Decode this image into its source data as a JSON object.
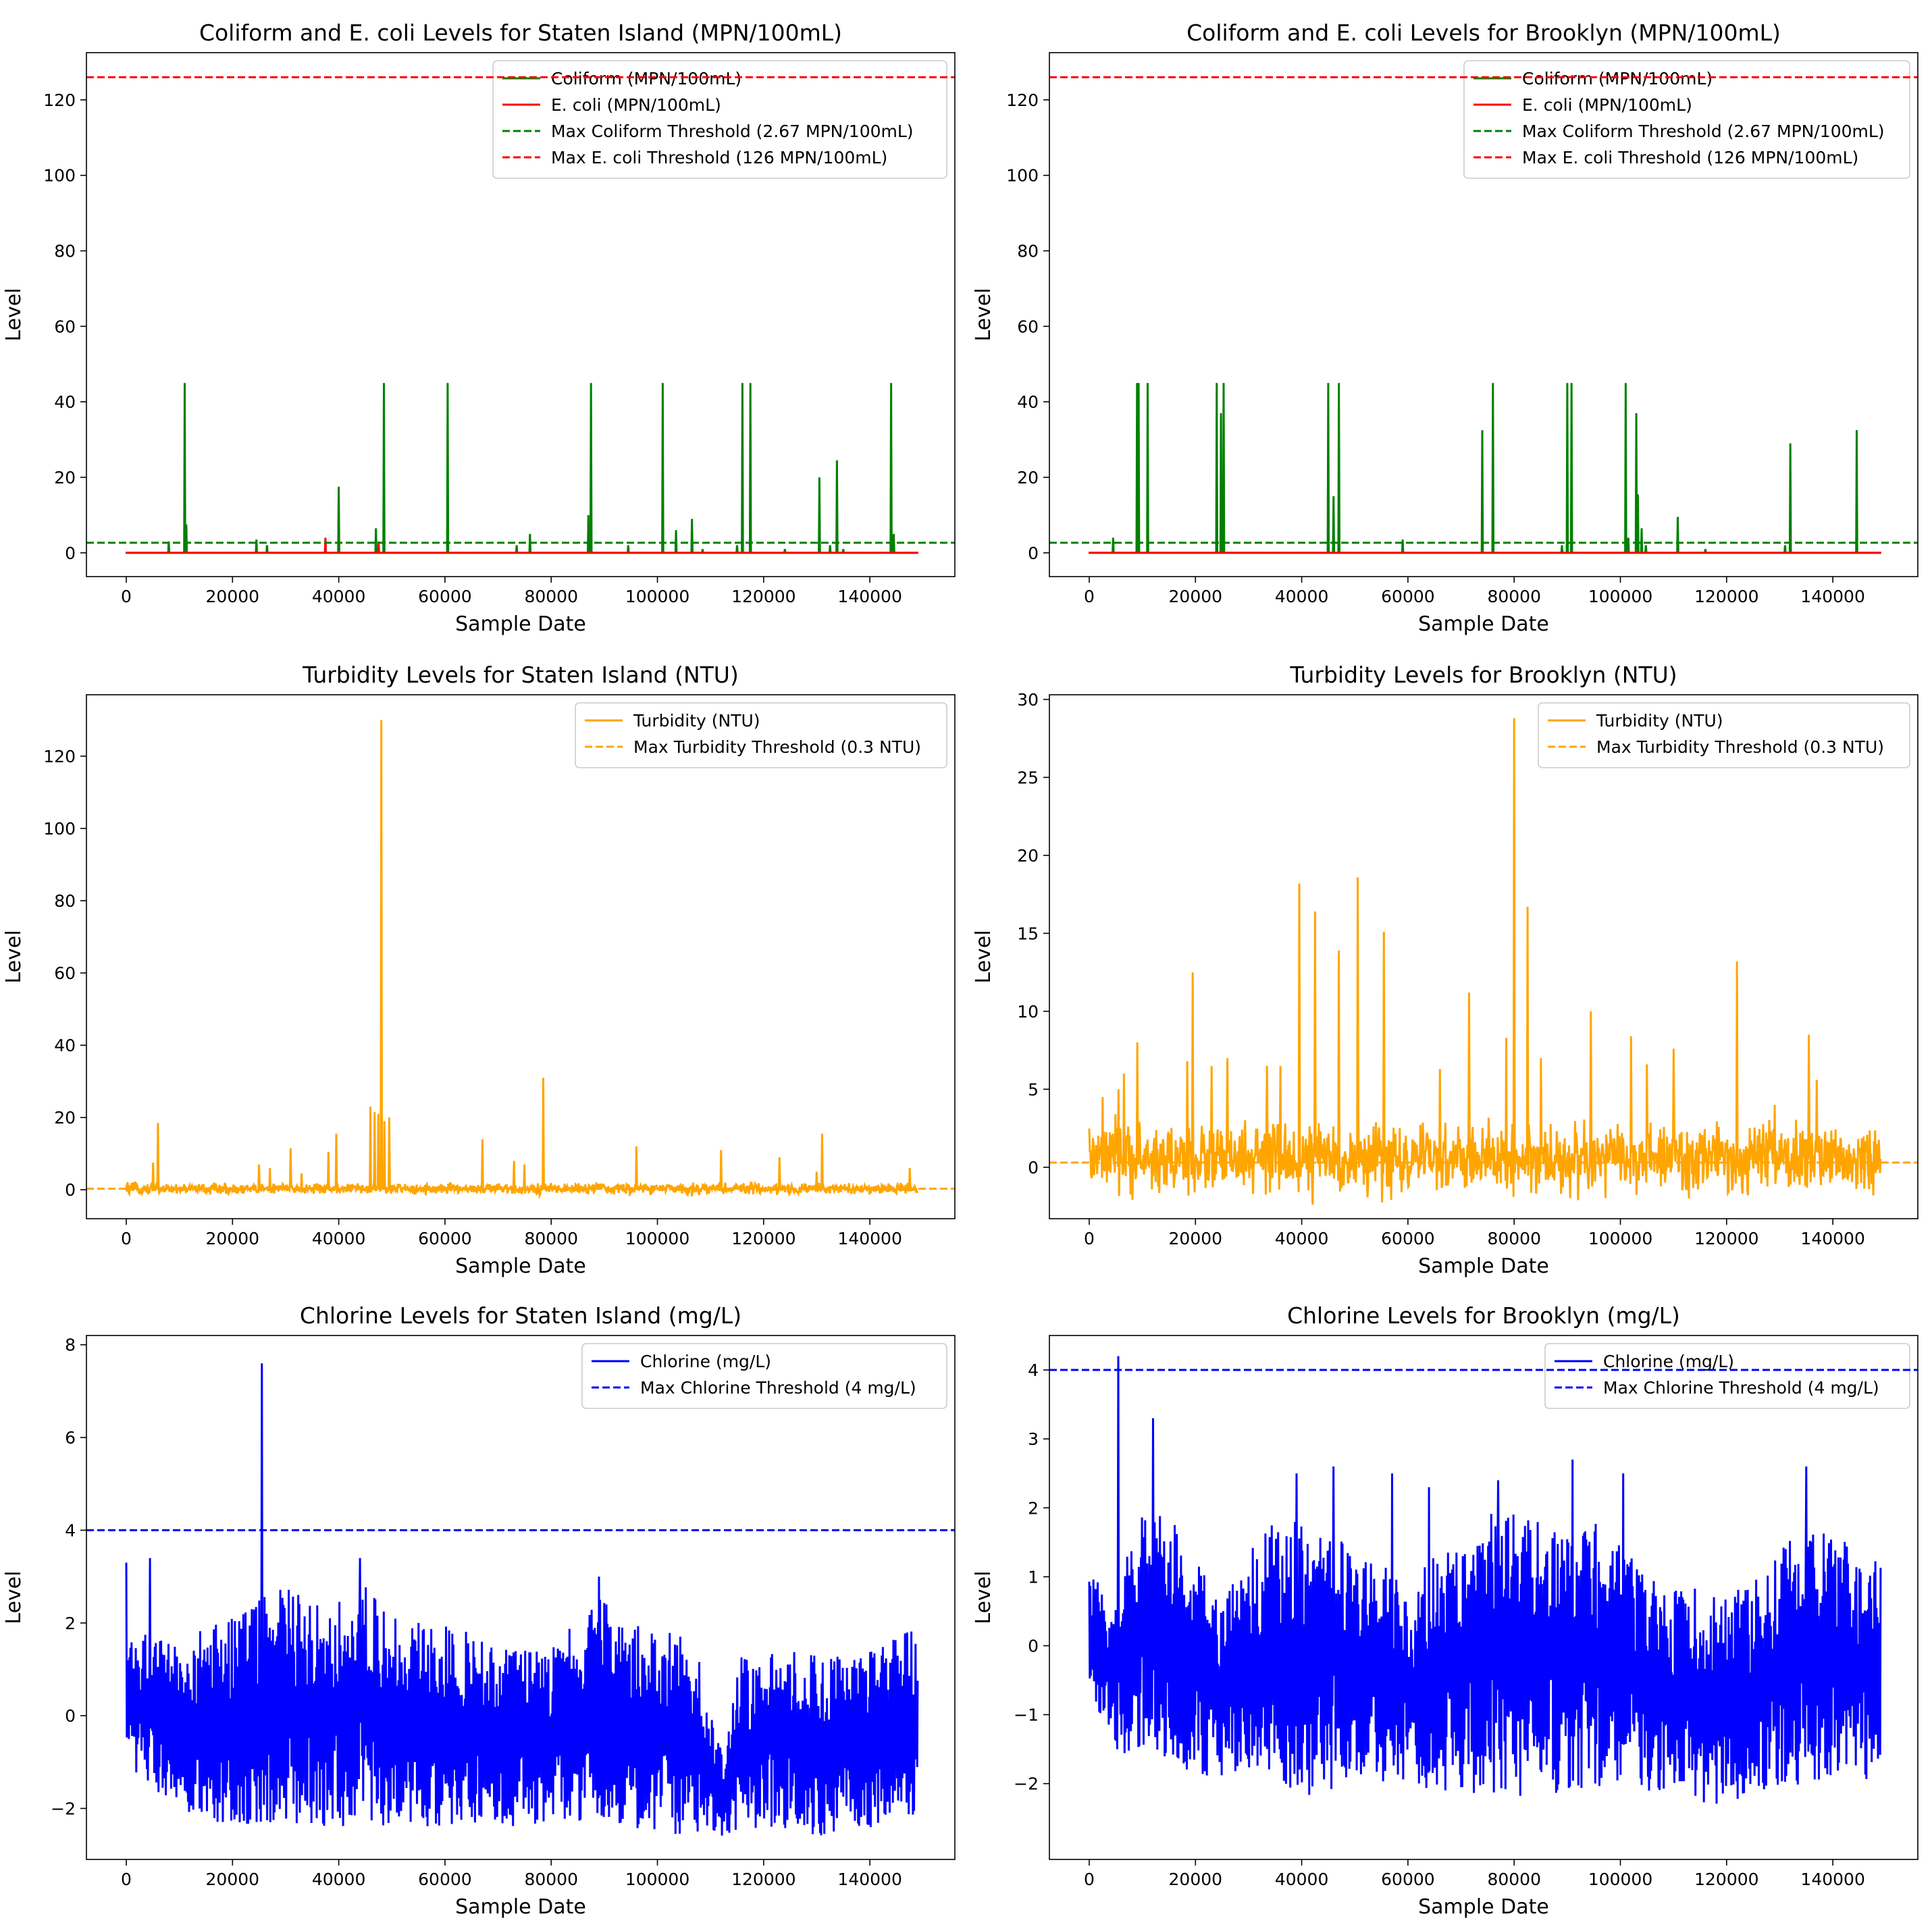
{
  "chart_data": [
    {
      "id": "coliform_staten",
      "type": "line",
      "title": "Coliform and E. coli Levels for Staten Island (MPN/100mL)",
      "xlabel": "Sample Date",
      "ylabel": "Level",
      "xlim": [
        -7500,
        156000
      ],
      "ylim": [
        -6.3,
        132.5
      ],
      "xticks": [
        0,
        20000,
        40000,
        60000,
        80000,
        100000,
        120000,
        140000
      ],
      "yticks": [
        0,
        20,
        40,
        60,
        80,
        100,
        120
      ],
      "legend_position": "upper right",
      "series": [
        {
          "name": "Coliform (MPN/100mL)",
          "kind": "spikes",
          "color": "#008000",
          "x": [
            0,
            8000,
            11000,
            11300,
            24500,
            26500,
            40000,
            47000,
            48500,
            60500,
            73500,
            76000,
            87000,
            87500,
            94500,
            101000,
            103500,
            106500,
            108500,
            115000,
            116000,
            117500,
            124000,
            130500,
            132500,
            133800,
            135000,
            144000,
            144500,
            149000
          ],
          "y": [
            0,
            3,
            45,
            7.5,
            3.5,
            2,
            17.5,
            6.5,
            45,
            45,
            2,
            5,
            10,
            45,
            2,
            45,
            6,
            9,
            1,
            2,
            45,
            45,
            1,
            20,
            2,
            24.5,
            1,
            45,
            5,
            0
          ]
        },
        {
          "name": "E. coli (MPN/100mL)",
          "kind": "spikes",
          "color": "#ff0000",
          "x": [
            0,
            37500,
            47500,
            149000
          ],
          "y": [
            0,
            4,
            3,
            0
          ]
        }
      ],
      "thresholds": [
        {
          "name": "Max Coliform Threshold (2.67 MPN/100mL)",
          "y": 2.67,
          "color": "#008000"
        },
        {
          "name": "Max E. coli Threshold (126 MPN/100mL)",
          "y": 126,
          "color": "#ff0000"
        }
      ]
    },
    {
      "id": "coliform_brooklyn",
      "type": "line",
      "title": "Coliform and E. coli Levels for Brooklyn (MPN/100mL)",
      "xlabel": "Sample Date",
      "ylabel": "Level",
      "xlim": [
        -7500,
        156000
      ],
      "ylim": [
        -6.3,
        132.5
      ],
      "xticks": [
        0,
        20000,
        40000,
        60000,
        80000,
        100000,
        120000,
        140000
      ],
      "yticks": [
        0,
        20,
        40,
        60,
        80,
        100,
        120
      ],
      "legend_position": "upper right",
      "series": [
        {
          "name": "Coliform (MPN/100mL)",
          "kind": "spikes",
          "color": "#008000",
          "x": [
            0,
            4500,
            9000,
            9300,
            11000,
            24000,
            24800,
            25300,
            45000,
            46000,
            47000,
            59000,
            74000,
            76000,
            89000,
            90000,
            90800,
            101000,
            101500,
            103000,
            103300,
            104000,
            104800,
            110800,
            116000,
            131000,
            132000,
            144500,
            149000
          ],
          "y": [
            0,
            4,
            45,
            45,
            45,
            45,
            37,
            45,
            45,
            15,
            45,
            3.5,
            32.5,
            45,
            2,
            45,
            45,
            45,
            4,
            37,
            15.5,
            6.5,
            2,
            9.5,
            1,
            2,
            29,
            32.5,
            0
          ]
        },
        {
          "name": "E. coli (MPN/100mL)",
          "kind": "spikes",
          "color": "#ff0000",
          "x": [
            0,
            149000
          ],
          "y": [
            0,
            0
          ]
        }
      ],
      "thresholds": [
        {
          "name": "Max Coliform Threshold (2.67 MPN/100mL)",
          "y": 2.67,
          "color": "#008000"
        },
        {
          "name": "Max E. coli Threshold (126 MPN/100mL)",
          "y": 126,
          "color": "#ff0000"
        }
      ]
    },
    {
      "id": "turbidity_staten",
      "type": "line",
      "title": "Turbidity Levels for Staten Island (NTU)",
      "xlabel": "Sample Date",
      "ylabel": "Level",
      "xlim": [
        -7500,
        156000
      ],
      "ylim": [
        -8,
        137
      ],
      "xticks": [
        0,
        20000,
        40000,
        60000,
        80000,
        100000,
        120000,
        140000
      ],
      "yticks": [
        0,
        20,
        40,
        60,
        80,
        100,
        120
      ],
      "legend_position": "upper right",
      "series": [
        {
          "name": "Turbidity (NTU)",
          "kind": "noise",
          "color": "#ffa500",
          "x_start": 0,
          "x_end": 149000,
          "base": 0.3,
          "noise": 2.2,
          "spikes_x": [
            5000,
            6000,
            25000,
            27000,
            31000,
            33000,
            38000,
            39500,
            46000,
            46800,
            47400,
            48000,
            48600,
            49500,
            67000,
            73000,
            75000,
            78500,
            96000,
            112000,
            123000,
            130000,
            131000,
            147500
          ],
          "spikes_y": [
            7.5,
            18.5,
            7,
            6,
            11.5,
            4.5,
            10.5,
            15.5,
            23,
            21.5,
            21,
            130,
            19,
            20,
            14,
            8,
            7,
            31,
            12,
            11,
            9,
            5,
            15.5,
            6
          ]
        }
      ],
      "thresholds": [
        {
          "name": "Max Turbidity Threshold (0.3 NTU)",
          "y": 0.3,
          "color": "#ffa500"
        }
      ]
    },
    {
      "id": "turbidity_brooklyn",
      "type": "line",
      "title": "Turbidity Levels for Brooklyn (NTU)",
      "xlabel": "Sample Date",
      "ylabel": "Level",
      "xlim": [
        -7500,
        156000
      ],
      "ylim": [
        -3.3,
        30.3
      ],
      "xticks": [
        0,
        20000,
        40000,
        60000,
        80000,
        100000,
        120000,
        140000
      ],
      "yticks": [
        0,
        5,
        10,
        15,
        20,
        25,
        30
      ],
      "legend_position": "upper right",
      "series": [
        {
          "name": "Turbidity (NTU)",
          "kind": "noise",
          "color": "#ffa500",
          "x_start": 0,
          "x_end": 149000,
          "base": 0.5,
          "noise": 3.2,
          "spikes_x": [
            2500,
            5500,
            6500,
            9000,
            18500,
            19500,
            23000,
            26000,
            33500,
            36000,
            39500,
            42500,
            47000,
            50500,
            55500,
            66000,
            71500,
            78500,
            80000,
            82500,
            85000,
            94500,
            102000,
            105000,
            110000,
            122000,
            129000,
            135500,
            137000
          ],
          "spikes_y": [
            4.5,
            5,
            6,
            8,
            6.8,
            12.5,
            6.5,
            7,
            6.5,
            6.5,
            18.2,
            16.4,
            13.9,
            18.6,
            15.1,
            6.3,
            11.2,
            8.3,
            28.8,
            16.7,
            7,
            10,
            8.4,
            6.6,
            7.6,
            13.2,
            4,
            8.5,
            5.6
          ]
        }
      ],
      "thresholds": [
        {
          "name": "Max Turbidity Threshold (0.3 NTU)",
          "y": 0.3,
          "color": "#ffa500"
        }
      ]
    },
    {
      "id": "chlorine_staten",
      "type": "line",
      "title": "Chlorine Levels for Staten Island (mg/L)",
      "xlabel": "Sample Date",
      "ylabel": "Level",
      "xlim": [
        -7500,
        156000
      ],
      "ylim": [
        -3.1,
        8.2
      ],
      "xticks": [
        0,
        20000,
        40000,
        60000,
        80000,
        100000,
        120000,
        140000
      ],
      "yticks": [
        -2,
        0,
        2,
        4,
        6,
        8
      ],
      "legend_position": "upper right",
      "series": [
        {
          "name": "Chlorine (mg/L)",
          "kind": "band",
          "color": "#0000ff",
          "x": [
            0,
            5000,
            10000,
            15000,
            20000,
            25000,
            30000,
            35000,
            40000,
            45000,
            50000,
            55000,
            60000,
            65000,
            70000,
            75000,
            80000,
            85000,
            90000,
            95000,
            100000,
            105000,
            108000,
            110000,
            113000,
            115000,
            120000,
            125000,
            130000,
            135000,
            140000,
            145000,
            149000
          ],
          "upper": [
            2.0,
            1.7,
            1.5,
            2.0,
            2.2,
            2.5,
            2.9,
            2.6,
            2.5,
            2.8,
            2.2,
            2.0,
            2.0,
            1.8,
            1.6,
            1.4,
            1.6,
            2.0,
            2.6,
            2.0,
            1.8,
            1.8,
            1.2,
            0.0,
            -0.8,
            1.3,
            1.5,
            1.4,
            1.3,
            1.3,
            1.4,
            1.7,
            1.9
          ],
          "lower": [
            -1.0,
            -1.6,
            -2.2,
            -2.3,
            -2.4,
            -2.3,
            -2.4,
            -2.4,
            -2.5,
            -2.3,
            -2.4,
            -2.5,
            -2.4,
            -2.3,
            -2.4,
            -2.4,
            -2.3,
            -2.3,
            -2.4,
            -2.5,
            -2.5,
            -2.6,
            -2.6,
            -2.6,
            -2.6,
            -2.6,
            -2.5,
            -2.5,
            -2.6,
            -2.5,
            -2.5,
            -2.4,
            -2.2
          ],
          "spikes_x": [
            0,
            4500,
            25500,
            44000,
            89000
          ],
          "spikes_y": [
            3.3,
            3.4,
            7.6,
            3.4,
            3.0
          ]
        }
      ],
      "thresholds": [
        {
          "name": "Max Chlorine Threshold (4 mg/L)",
          "y": 4,
          "color": "#0000ff"
        }
      ]
    },
    {
      "id": "chlorine_brooklyn",
      "type": "line",
      "title": "Chlorine Levels for Brooklyn (mg/L)",
      "xlabel": "Sample Date",
      "ylabel": "Level",
      "xlim": [
        -7500,
        156000
      ],
      "ylim": [
        -3.1,
        4.5
      ],
      "xticks": [
        0,
        20000,
        40000,
        60000,
        80000,
        100000,
        120000,
        140000
      ],
      "yticks": [
        -2,
        -1,
        0,
        1,
        2,
        3,
        4
      ],
      "legend_position": "upper right",
      "series": [
        {
          "name": "Chlorine (mg/L)",
          "kind": "band",
          "color": "#0000ff",
          "x": [
            0,
            5000,
            10000,
            15000,
            20000,
            25000,
            30000,
            35000,
            40000,
            45000,
            50000,
            55000,
            60000,
            65000,
            70000,
            75000,
            80000,
            85000,
            90000,
            95000,
            100000,
            105000,
            110000,
            115000,
            120000,
            125000,
            130000,
            135000,
            140000,
            145000,
            149000
          ],
          "upper": [
            1.0,
            0.8,
            2.0,
            2.0,
            1.2,
            0.8,
            1.4,
            1.8,
            1.8,
            1.6,
            1.5,
            1.2,
            0.9,
            1.3,
            1.6,
            1.9,
            2.0,
            1.8,
            1.7,
            1.8,
            1.5,
            1.0,
            0.8,
            0.9,
            0.8,
            0.9,
            1.5,
            1.6,
            1.7,
            1.5,
            1.2
          ],
          "lower": [
            -0.6,
            -1.6,
            -1.5,
            -1.7,
            -1.9,
            -1.9,
            -2.0,
            -2.1,
            -2.2,
            -2.1,
            -2.0,
            -2.0,
            -2.1,
            -2.1,
            -2.1,
            -2.2,
            -2.2,
            -2.1,
            -2.2,
            -2.1,
            -2.0,
            -2.1,
            -2.2,
            -2.3,
            -2.3,
            -2.2,
            -2.1,
            -2.0,
            -2.0,
            -2.0,
            -1.8
          ],
          "spikes_x": [
            5500,
            12000,
            39000,
            46000,
            57000,
            64000,
            77000,
            91000,
            100500,
            135000
          ],
          "spikes_y": [
            4.2,
            3.3,
            2.5,
            2.6,
            2.5,
            2.3,
            2.4,
            2.7,
            2.5,
            2.6
          ]
        }
      ],
      "thresholds": [
        {
          "name": "Max Chlorine Threshold (4 mg/L)",
          "y": 4,
          "color": "#0000ff"
        }
      ]
    }
  ]
}
